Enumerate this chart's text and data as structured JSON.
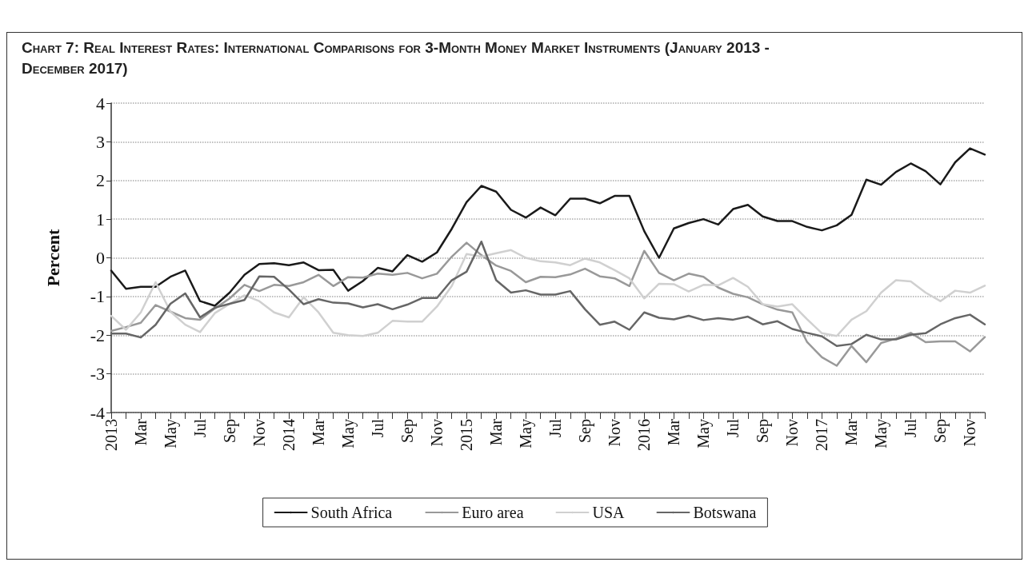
{
  "chart_data": {
    "type": "line",
    "title": "Chart 7: Real Interest Rates: International Comparisons for 3-Month Money Market Instruments (January 2013 - December 2017)",
    "ylabel": "Percent",
    "categories": [
      "2013",
      null,
      "Mar",
      null,
      "May",
      null,
      "Jul",
      null,
      "Sep",
      null,
      "Nov",
      null,
      "2014",
      null,
      "Mar",
      null,
      "May",
      null,
      "Jul",
      null,
      "Sep",
      null,
      "Nov",
      null,
      "2015",
      null,
      "Mar",
      null,
      "May",
      null,
      "Jul",
      null,
      "Sep",
      null,
      "Nov",
      null,
      "2016",
      null,
      "Mar",
      null,
      "May",
      null,
      "Jul",
      null,
      "Sep",
      null,
      "Nov",
      null,
      "2017",
      null,
      "Mar",
      null,
      "May",
      null,
      "Jul",
      null,
      "Sep",
      null,
      "Nov",
      null
    ],
    "series": [
      {
        "name": "South Africa",
        "color": "#1a1a1a",
        "values": [
          -0.33,
          -0.8,
          -0.75,
          -0.75,
          -0.49,
          -0.33,
          -1.12,
          -1.24,
          -0.9,
          -0.44,
          -0.16,
          -0.14,
          -0.19,
          -0.12,
          -0.32,
          -0.31,
          -0.85,
          -0.6,
          -0.26,
          -0.35,
          0.07,
          -0.1,
          0.14,
          0.75,
          1.44,
          1.86,
          1.71,
          1.24,
          1.04,
          1.3,
          1.1,
          1.53,
          1.53,
          1.41,
          1.6,
          1.6,
          0.69,
          0,
          0.76,
          0.9,
          1.0,
          0.86,
          1.26,
          1.37,
          1.07,
          0.95,
          0.95,
          0.8,
          0.71,
          0.84,
          1.11,
          2.02,
          1.89,
          2.22,
          2.44,
          2.24,
          1.9,
          2.47,
          2.83,
          2.67
        ]
      },
      {
        "name": "Euro area",
        "color": "#999999",
        "values": [
          -1.89,
          -1.79,
          -1.68,
          -1.22,
          -1.39,
          -1.56,
          -1.6,
          -1.31,
          -1.05,
          -0.7,
          -0.86,
          -0.7,
          -0.73,
          -0.63,
          -0.44,
          -0.73,
          -0.5,
          -0.51,
          -0.41,
          -0.44,
          -0.39,
          -0.53,
          -0.41,
          0.03,
          0.39,
          0.07,
          -0.2,
          -0.34,
          -0.63,
          -0.49,
          -0.5,
          -0.43,
          -0.28,
          -0.48,
          -0.53,
          -0.73,
          0.18,
          -0.39,
          -0.58,
          -0.41,
          -0.49,
          -0.77,
          -0.93,
          -1.02,
          -1.2,
          -1.34,
          -1.41,
          -2.18,
          -2.57,
          -2.79,
          -2.28,
          -2.7,
          -2.2,
          -2.09,
          -1.94,
          -2.18,
          -2.16,
          -2.16,
          -2.42,
          -2.05
        ]
      },
      {
        "name": "USA",
        "color": "#d0d0d0",
        "values": [
          -1.5,
          -1.86,
          -1.41,
          -0.63,
          -1.39,
          -1.73,
          -1.92,
          -1.43,
          -1.19,
          -0.97,
          -1.12,
          -1.41,
          -1.54,
          -1.02,
          -1.41,
          -1.94,
          -2.0,
          -2.02,
          -1.94,
          -1.63,
          -1.65,
          -1.65,
          -1.26,
          -0.73,
          0.1,
          0.03,
          0.12,
          0.2,
          0,
          -0.09,
          -0.12,
          -0.19,
          -0.02,
          -0.12,
          -0.32,
          -0.53,
          -1.05,
          -0.67,
          -0.68,
          -0.87,
          -0.7,
          -0.71,
          -0.52,
          -0.75,
          -1.2,
          -1.26,
          -1.2,
          -1.59,
          -1.95,
          -2.02,
          -1.6,
          -1.38,
          -0.9,
          -0.58,
          -0.61,
          -0.9,
          -1.12,
          -0.85,
          -0.9,
          -0.72
        ]
      },
      {
        "name": "Botswana",
        "color": "#666666",
        "values": [
          -1.96,
          -1.96,
          -2.06,
          -1.73,
          -1.19,
          -0.92,
          -1.54,
          -1.29,
          -1.19,
          -1.09,
          -0.48,
          -0.49,
          -0.82,
          -1.2,
          -1.07,
          -1.16,
          -1.18,
          -1.28,
          -1.2,
          -1.33,
          -1.21,
          -1.04,
          -1.04,
          -0.58,
          -0.36,
          0.42,
          -0.58,
          -0.9,
          -0.84,
          -0.95,
          -0.95,
          -0.86,
          -1.33,
          -1.73,
          -1.65,
          -1.86,
          -1.41,
          -1.55,
          -1.59,
          -1.5,
          -1.61,
          -1.56,
          -1.6,
          -1.52,
          -1.72,
          -1.64,
          -1.84,
          -1.94,
          -2.03,
          -2.28,
          -2.23,
          -1.99,
          -2.11,
          -2.11,
          -1.99,
          -1.95,
          -1.72,
          -1.56,
          -1.47,
          -1.72
        ]
      }
    ],
    "ylim": [
      -4,
      4
    ],
    "yticks": [
      -4,
      -3,
      -2,
      -1,
      0,
      1,
      2,
      3,
      4
    ],
    "grid": "y",
    "legend": "bottom",
    "marker": "none",
    "line_style": "solid"
  }
}
